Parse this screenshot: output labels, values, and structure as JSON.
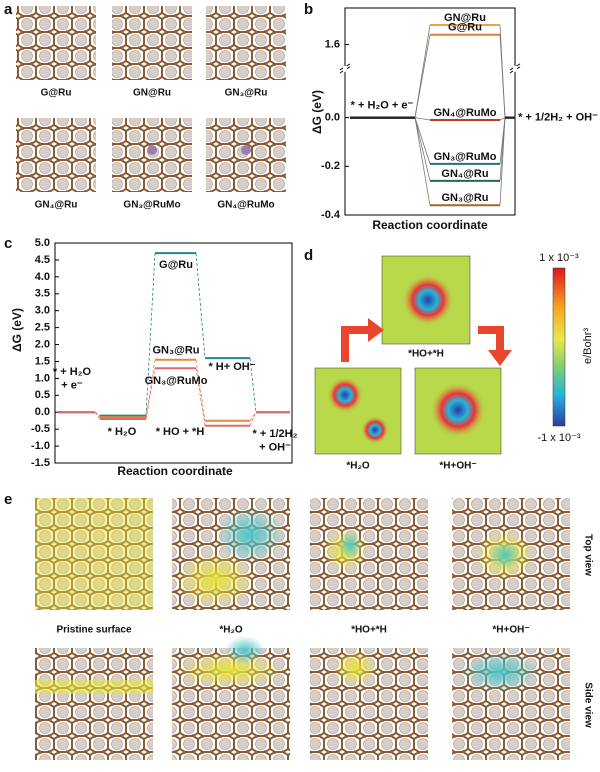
{
  "panel_labels": [
    "a",
    "b",
    "c",
    "d",
    "e"
  ],
  "panel_a": {
    "captions": [
      "G@Ru",
      "GN@Ru",
      "GN₃@Ru",
      "GN₄@Ru",
      "GN₃@RuMo",
      "GN₄@RuMo"
    ]
  },
  "chart_data": [
    {
      "type": "level",
      "ylabel": "ΔG (eV)",
      "xlabel": "Reaction coordinate",
      "categories": [
        "* + H₂O + e⁻",
        null,
        "* + 1/2H₂ + OH⁻"
      ],
      "series": [
        {
          "name": "GN@Ru",
          "color": "#e8a640",
          "values": [
            0,
            1.68,
            0
          ]
        },
        {
          "name": "G@Ru",
          "color": "#e07a35",
          "values": [
            0,
            1.64,
            0
          ]
        },
        {
          "name": "GN₄@RuMo",
          "color": "#c0392b",
          "values": [
            0,
            -0.01,
            0
          ]
        },
        {
          "name": "GN₃@RuMo",
          "color": "#2b6c8c",
          "values": [
            0,
            -0.19,
            0
          ]
        },
        {
          "name": "GN₄@Ru",
          "color": "#1f6b58",
          "values": [
            0,
            -0.26,
            0
          ]
        },
        {
          "name": "GN₃@Ru",
          "color": "#9a6a2a",
          "values": [
            0,
            -0.36,
            0
          ]
        }
      ],
      "ylim": [
        -0.4,
        1.75
      ],
      "axis_break": [
        0.2,
        1.5
      ],
      "yticks": [
        1.6,
        {
          "value": 0,
          "label": "0.0"
        },
        -0.2,
        -0.4
      ]
    },
    {
      "type": "level",
      "ylabel": "ΔG (eV)",
      "xlabel": "Reaction coordinate",
      "categories": [
        "* + H₂O\n+ e⁻",
        "* H₂O",
        "* HO + *H",
        "* H+ OH⁻",
        "* + 1/2H₂\n+ OH⁻"
      ],
      "series": [
        {
          "name": "G@Ru",
          "color": "#1f8a80",
          "values": [
            0,
            -0.1,
            4.7,
            1.6,
            0
          ]
        },
        {
          "name": "GN₃@Ru",
          "color": "#e8873a",
          "values": [
            0,
            -0.15,
            1.55,
            -0.25,
            0
          ]
        },
        {
          "name": "GN₃@RuMo",
          "color": "#e06a6a",
          "values": [
            0,
            -0.2,
            1.3,
            -0.4,
            0
          ]
        }
      ],
      "ylim": [
        -1.5,
        5.0
      ],
      "yticks": [
        -1.5,
        {
          "value": -1,
          "label": "-1.0"
        },
        -0.5,
        {
          "value": 0,
          "label": "0.0"
        },
        0.5,
        {
          "value": 1,
          "label": "1.0"
        },
        1.5,
        {
          "value": 2,
          "label": "2.0"
        },
        2.5,
        {
          "value": 3,
          "label": "3.0"
        },
        3.5,
        {
          "value": 4,
          "label": "4.0"
        },
        4.5,
        {
          "value": 5,
          "label": "5.0"
        }
      ]
    }
  ],
  "panel_d": {
    "colorbar_max": "1 x 10⁻³",
    "colorbar_min": "-1 x 10⁻³",
    "colorbar_unit": "e/Bohr³",
    "states": [
      "*HO+*H",
      "*H₂O",
      "*H+OH⁻"
    ]
  },
  "panel_e": {
    "captions": [
      "Pristine surface",
      "*H₂O",
      "*HO+*H",
      "*H+OH⁻"
    ],
    "views": [
      "Top view",
      "Side view"
    ]
  }
}
